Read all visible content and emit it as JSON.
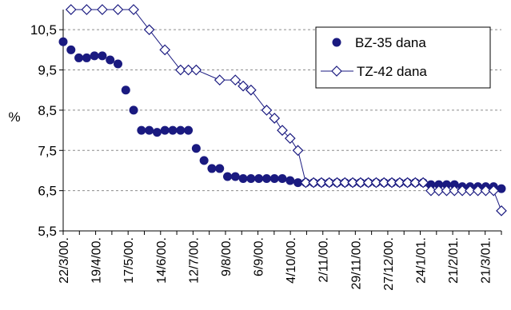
{
  "chart_data": {
    "type": "line",
    "title": "",
    "xlabel": "",
    "ylabel": "%",
    "ylim": [
      5.5,
      11.0
    ],
    "yticks": [
      5.5,
      6.5,
      7.5,
      8.5,
      9.5,
      10.5
    ],
    "ytick_labels": [
      "5,5",
      "6,5",
      "7,5",
      "8,5",
      "9,5",
      "10,5"
    ],
    "xticks": [
      "22/3/00.",
      "19/4/00.",
      "17/5/00.",
      "14/6/00.",
      "12/7/00.",
      "9/8/00.",
      "6/9/00.",
      "4/10/00.",
      "2/11/00.",
      "29/11/00.",
      "27/12/00.",
      "24/1/01.",
      "21/2/01.",
      "21/3/01."
    ],
    "grid": "horizontal-dashed",
    "legend_position": "top-right",
    "series": [
      {
        "name": "BZ-35 dana",
        "marker": "filled-circle",
        "line": false,
        "color": "#1a1a80",
        "points": [
          [
            0,
            10.2
          ],
          [
            1,
            10.0
          ],
          [
            2,
            9.8
          ],
          [
            3,
            9.8
          ],
          [
            4,
            9.85
          ],
          [
            5,
            9.85
          ],
          [
            6,
            9.75
          ],
          [
            7,
            9.65
          ],
          [
            8,
            9.0
          ],
          [
            9,
            8.5
          ],
          [
            10,
            8.0
          ],
          [
            11,
            8.0
          ],
          [
            12,
            7.95
          ],
          [
            13,
            8.0
          ],
          [
            14,
            8.0
          ],
          [
            15,
            8.0
          ],
          [
            16,
            8.0
          ],
          [
            17,
            7.55
          ],
          [
            18,
            7.25
          ],
          [
            19,
            7.05
          ],
          [
            20,
            7.05
          ],
          [
            21,
            6.85
          ],
          [
            22,
            6.85
          ],
          [
            23,
            6.8
          ],
          [
            24,
            6.8
          ],
          [
            25,
            6.8
          ],
          [
            26,
            6.8
          ],
          [
            27,
            6.8
          ],
          [
            28,
            6.8
          ],
          [
            29,
            6.75
          ],
          [
            30,
            6.7
          ],
          [
            31,
            6.7
          ],
          [
            32,
            6.7
          ],
          [
            33,
            6.7
          ],
          [
            34,
            6.7
          ],
          [
            35,
            6.7
          ],
          [
            36,
            6.7
          ],
          [
            37,
            6.7
          ],
          [
            38,
            6.7
          ],
          [
            39,
            6.7
          ],
          [
            40,
            6.7
          ],
          [
            41,
            6.7
          ],
          [
            42,
            6.7
          ],
          [
            43,
            6.7
          ],
          [
            44,
            6.7
          ],
          [
            45,
            6.7
          ],
          [
            46,
            6.7
          ],
          [
            47,
            6.65
          ],
          [
            48,
            6.65
          ],
          [
            49,
            6.65
          ],
          [
            50,
            6.65
          ],
          [
            51,
            6.6
          ],
          [
            52,
            6.6
          ],
          [
            53,
            6.6
          ],
          [
            54,
            6.6
          ],
          [
            55,
            6.6
          ],
          [
            56,
            6.55
          ]
        ]
      },
      {
        "name": "TZ-42 dana",
        "marker": "open-diamond",
        "line": true,
        "color": "#1a1a80",
        "points": [
          [
            1,
            11.0
          ],
          [
            3,
            11.0
          ],
          [
            5,
            11.0
          ],
          [
            7,
            11.0
          ],
          [
            9,
            11.0
          ],
          [
            11,
            10.5
          ],
          [
            13,
            10.0
          ],
          [
            15,
            9.5
          ],
          [
            16,
            9.5
          ],
          [
            17,
            9.5
          ],
          [
            20,
            9.25
          ],
          [
            22,
            9.25
          ],
          [
            23,
            9.1
          ],
          [
            24,
            9.0
          ],
          [
            26,
            8.5
          ],
          [
            27,
            8.3
          ],
          [
            28,
            8.0
          ],
          [
            29,
            7.8
          ],
          [
            30,
            7.5
          ],
          [
            31,
            6.7
          ],
          [
            32,
            6.7
          ],
          [
            33,
            6.7
          ],
          [
            34,
            6.7
          ],
          [
            35,
            6.7
          ],
          [
            36,
            6.7
          ],
          [
            37,
            6.7
          ],
          [
            38,
            6.7
          ],
          [
            39,
            6.7
          ],
          [
            40,
            6.7
          ],
          [
            41,
            6.7
          ],
          [
            42,
            6.7
          ],
          [
            43,
            6.7
          ],
          [
            44,
            6.7
          ],
          [
            45,
            6.7
          ],
          [
            46,
            6.7
          ],
          [
            47,
            6.5
          ],
          [
            48,
            6.5
          ],
          [
            49,
            6.5
          ],
          [
            50,
            6.5
          ],
          [
            51,
            6.5
          ],
          [
            52,
            6.5
          ],
          [
            53,
            6.5
          ],
          [
            54,
            6.5
          ],
          [
            55,
            6.5
          ],
          [
            56,
            6.0
          ]
        ]
      }
    ]
  }
}
